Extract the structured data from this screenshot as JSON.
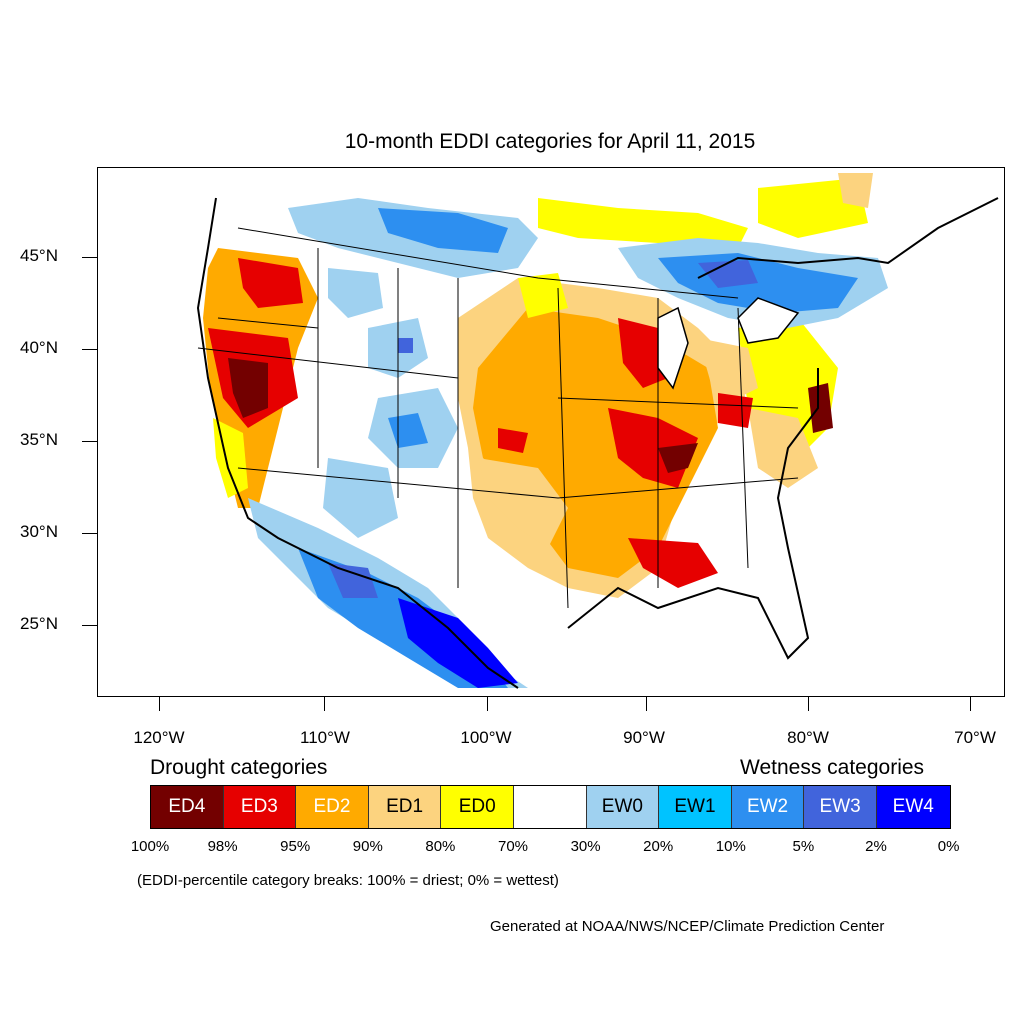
{
  "title": "10-month EDDI categories for April 11, 2015",
  "lat_labels": [
    "45°N",
    "40°N",
    "35°N",
    "30°N",
    "25°N"
  ],
  "lon_labels": [
    "120°W",
    "110°W",
    "100°W",
    "90°W",
    "80°W",
    "70°W"
  ],
  "legend": {
    "drought_heading": "Drought categories",
    "wetness_heading": "Wetness categories",
    "categories": [
      {
        "label": "ED4",
        "color": "#730000",
        "text_color": "#ffffff"
      },
      {
        "label": "ED3",
        "color": "#e60000",
        "text_color": "#ffffff"
      },
      {
        "label": "ED2",
        "color": "#ffaa00",
        "text_color": "#ffffff"
      },
      {
        "label": "ED1",
        "color": "#fcd37f",
        "text_color": "#000000"
      },
      {
        "label": "ED0",
        "color": "#ffff00",
        "text_color": "#000000"
      },
      {
        "label": "",
        "color": "#ffffff",
        "text_color": "#000000"
      },
      {
        "label": "EW0",
        "color": "#9fd1f0",
        "text_color": "#000000"
      },
      {
        "label": "EW1",
        "color": "#00c3ff",
        "text_color": "#000000"
      },
      {
        "label": "EW2",
        "color": "#2d8ff0",
        "text_color": "#ffffff"
      },
      {
        "label": "EW3",
        "color": "#4164dc",
        "text_color": "#ffffff"
      },
      {
        "label": "EW4",
        "color": "#0000ff",
        "text_color": "#ffffff"
      }
    ],
    "percent_breaks": [
      "100%",
      "98%",
      "95%",
      "90%",
      "80%",
      "70%",
      "30%",
      "20%",
      "10%",
      "5%",
      "2%",
      "0%"
    ]
  },
  "note": "(EDDI-percentile category breaks: 100% = driest; 0% = wettest)",
  "credit": "Generated at NOAA/NWS/NCEP/Climate Prediction Center"
}
